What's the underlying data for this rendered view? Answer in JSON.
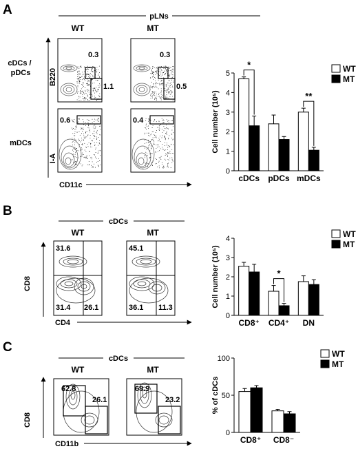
{
  "panel_letters": [
    "A",
    "B",
    "C"
  ],
  "groups": {
    "wt": "WT",
    "mt": "MT"
  },
  "colors": {
    "wt_fill": "#ffffff",
    "mt_fill": "#000000",
    "stroke": "#000000"
  },
  "panel_a": {
    "header": "pLNs",
    "row1_label": [
      "cDCs /",
      "pDCs"
    ],
    "row1_axis": "B220",
    "row2_label": "mDCs",
    "row2_axis": "I-A",
    "x_axis": "CD11c",
    "gates": {
      "wt_row1": [
        "0.3",
        "1.1"
      ],
      "mt_row1": [
        "0.3",
        "0.5"
      ],
      "wt_row2": [
        "0.6"
      ],
      "mt_row2": [
        "0.4"
      ]
    }
  },
  "panel_b": {
    "header": "cDCs",
    "y_axis": "CD8",
    "x_axis": "CD4",
    "wt_quadrants": [
      "31.6",
      "31.4",
      "26.1"
    ],
    "mt_quadrants": [
      "45.1",
      "36.1",
      "11.3"
    ]
  },
  "panel_c": {
    "header": "cDCs",
    "y_axis": "CD8",
    "x_axis": "CD11b",
    "wt_gates": [
      "62.8",
      "26.1"
    ],
    "mt_gates": [
      "68.9",
      "23.2"
    ]
  },
  "chart_data": [
    {
      "type": "bar",
      "panel": "A",
      "ylabel": "Cell number (10⁵)",
      "ylim": [
        0,
        5
      ],
      "yticks": [
        "0",
        "1",
        "2",
        "3",
        "4",
        "5"
      ],
      "categories": [
        "cDCs",
        "pDCs",
        "mDCs"
      ],
      "series": [
        {
          "name": "WT",
          "values": [
            4.7,
            2.4,
            3.0
          ],
          "errors": [
            0.1,
            0.45,
            0.2
          ]
        },
        {
          "name": "MT",
          "values": [
            2.3,
            1.6,
            1.05
          ],
          "errors": [
            0.5,
            0.15,
            0.15
          ]
        }
      ],
      "significance": [
        "*",
        "",
        "**"
      ],
      "legend": "top-right"
    },
    {
      "type": "bar",
      "panel": "B",
      "ylabel": "Cell number (10⁵)",
      "ylim": [
        0,
        4
      ],
      "yticks": [
        "0",
        "1",
        "2",
        "3",
        "4"
      ],
      "categories": [
        "CD8⁺",
        "CD4⁺",
        "DN"
      ],
      "series": [
        {
          "name": "WT",
          "values": [
            2.55,
            1.25,
            1.75
          ],
          "errors": [
            0.2,
            0.3,
            0.3
          ]
        },
        {
          "name": "MT",
          "values": [
            2.25,
            0.5,
            1.6
          ],
          "errors": [
            0.4,
            0.12,
            0.25
          ]
        }
      ],
      "significance": [
        "",
        "*",
        ""
      ],
      "legend": "top-right"
    },
    {
      "type": "bar",
      "panel": "C",
      "ylabel": "% of cDCs",
      "ylim": [
        0,
        100
      ],
      "yticks": [
        "0",
        "50",
        "100"
      ],
      "categories": [
        "CD8⁺",
        "CD8⁻"
      ],
      "series": [
        {
          "name": "WT",
          "values": [
            55,
            29
          ],
          "errors": [
            4,
            2
          ]
        },
        {
          "name": "MT",
          "values": [
            60,
            25
          ],
          "errors": [
            3,
            3
          ]
        }
      ],
      "significance": [
        "",
        ""
      ],
      "legend": "top-right"
    }
  ]
}
